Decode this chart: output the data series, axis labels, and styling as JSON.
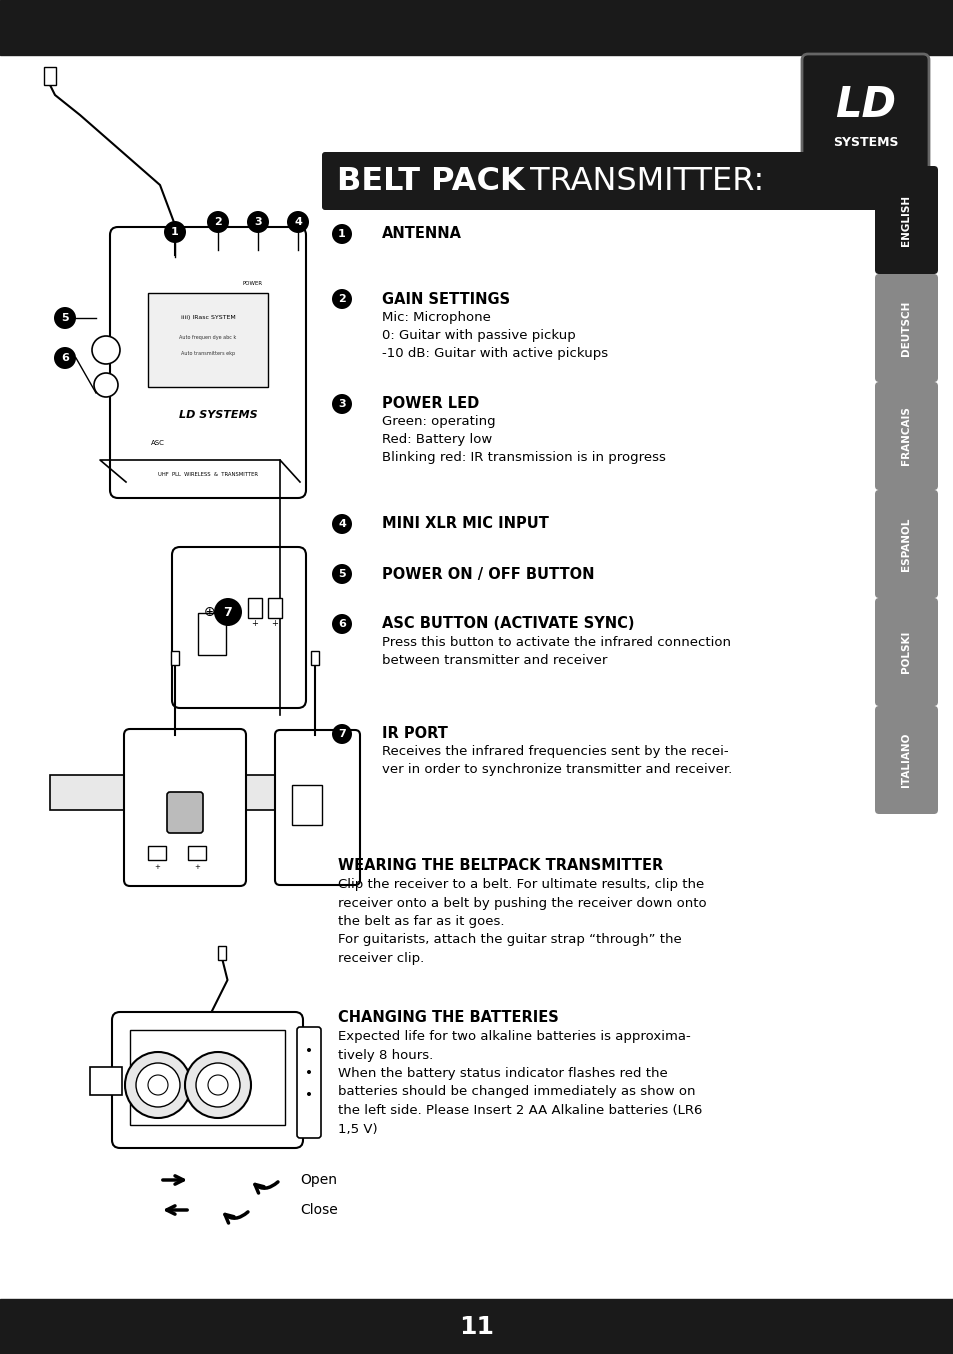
{
  "bg_color": "#ffffff",
  "top_bar_color": "#1a1a1a",
  "bottom_bar_color": "#1a1a1a",
  "title_bold": "BELT PACK",
  "title_normal": " TRANSMITTER:",
  "page_number": "11",
  "lang_tabs": [
    {
      "label": "ENGLISH",
      "active": true,
      "color": "#1a1a1a"
    },
    {
      "label": "DEUTSCH",
      "active": false,
      "color": "#888888"
    },
    {
      "label": "FRANCAIS",
      "active": false,
      "color": "#888888"
    },
    {
      "label": "ESPANOL",
      "active": false,
      "color": "#888888"
    },
    {
      "label": "POLSKI",
      "active": false,
      "color": "#888888"
    },
    {
      "label": "ITALIANO",
      "active": false,
      "color": "#888888"
    }
  ],
  "items": [
    {
      "num": "1",
      "heading": "ANTENNA",
      "sub": []
    },
    {
      "num": "2",
      "heading": "GAIN SETTINGS",
      "sub": [
        "Mic: Microphone",
        "0: Guitar with passive pickup",
        "-10 dB: Guitar with active pickups"
      ]
    },
    {
      "num": "3",
      "heading": "POWER LED",
      "sub": [
        "Green: operating",
        "Red: Battery low",
        "Blinking red: IR transmission is in progress"
      ]
    },
    {
      "num": "4",
      "heading": "MINI XLR MIC INPUT",
      "sub": []
    },
    {
      "num": "5",
      "heading": "POWER ON / OFF BUTTON",
      "sub": []
    },
    {
      "num": "6",
      "heading": "ASC BUTTON (ACTIVATE SYNC)",
      "sub": [
        "Press this button to activate the infrared connection",
        "between transmitter and receiver"
      ]
    },
    {
      "num": "7",
      "heading": "IR PORT",
      "sub": [
        "Receives the infrared frequencies sent by the recei-",
        "ver in order to synchronize transmitter and receiver."
      ]
    }
  ],
  "section_wearing_title": "WEARING THE BELTPACK TRANSMITTER",
  "section_wearing_text": "Clip the receiver to a belt. For ultimate results, clip the\nreceiver onto a belt by pushing the receiver down onto\nthe belt as far as it goes.\nFor guitarists, attach the guitar strap “through” the\nreceiver clip.",
  "section_battery_title": "CHANGING THE BATTERIES",
  "section_battery_text": "Expected life for two alkaline batteries is approxima-\ntively 8 hours.\nWhen the battery status indicator flashes red the\nbatteries should be changed immediately as show on\nthe left side. Please Insert 2 AA Alkaline batteries (LR6\n1,5 V)"
}
